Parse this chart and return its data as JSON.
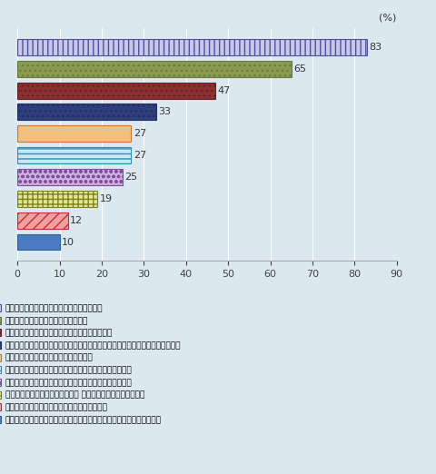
{
  "categories": [
    "有害な化学物質を製造過程で使用していない",
    "リサイクル由来の原料が使われている",
    "オーガニック栽培に由来する原料が使われている",
    "（環境に対して）低負荷の技術や生産工程によって作られる伝統的な生地である",
    "電気、水の使用量の低減が図られている",
    "サステナビリティの管理システムが社内に整備されている",
    "責任をもって管理された森林に由来する原料を用いている",
    "クローズドループ型生産システム でつくられた化学繊維である",
    "革新的な、有機由来の化学繊維が使われている",
    "動物に配慮した（残酷な方法でない）飼育に由来する繊維や生地である"
  ],
  "values": [
    83,
    65,
    47,
    33,
    27,
    27,
    25,
    19,
    12,
    10
  ],
  "bar_facecolors": [
    "#c8c8e8",
    "#8a9a50",
    "#8b3030",
    "#2e3f7a",
    "#f0c080",
    "#c8e8f8",
    "#d0b0e0",
    "#e0e890",
    "#f0a0a0",
    "#4a7abf"
  ],
  "bar_edgecolors": [
    "#5050a0",
    "#6a7a40",
    "#6a2020",
    "#1e2f6a",
    "#c87830",
    "#3090b0",
    "#8050a0",
    "#808020",
    "#c03030",
    "#3060a0"
  ],
  "hatch_patterns": [
    "|||",
    "...",
    "...",
    "...",
    "~",
    "---",
    "ooo",
    "+++",
    "///",
    ""
  ],
  "title_unit": "(%)",
  "xlim": [
    0,
    90
  ],
  "xticks": [
    0,
    10,
    20,
    30,
    40,
    50,
    60,
    70,
    80,
    90
  ],
  "background_color": "#dce8f0",
  "bar_height": 0.75,
  "legend_labels": [
    "有害な化学物質を製造過程で使用していない",
    "リサイクル由来の原料が使われている",
    "オーガニック栽培に由来する原料が使われている",
    "（環境に対して）低負荷の技術や生産工程によって作られる伝統的な生地である",
    "電気、水の使用量の低減が図られている",
    "サステナビリティの管理システムが社内に整備されている",
    "責任をもって管理された森林に由来する原料を用いている",
    "クローズドループ型生産システム でつくられた化学繊維である",
    "革新的な、有機由来の化学繊維が使われている",
    "動物に配慮した（残酷な方法でない）飼育に由来する繊維や生地である"
  ]
}
